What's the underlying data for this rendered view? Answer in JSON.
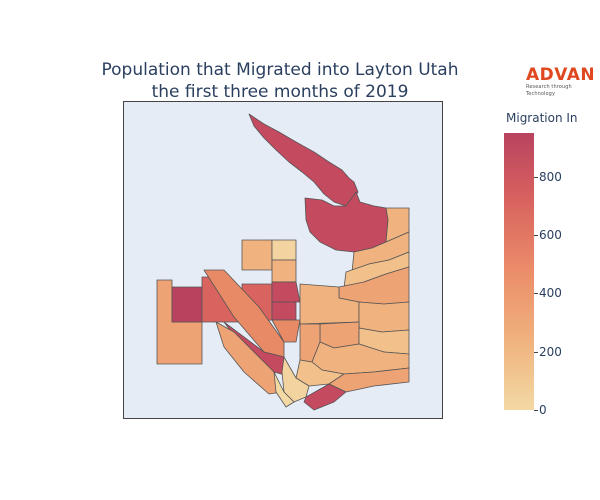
{
  "title": {
    "line1": "Population that Migrated into Layton Utah",
    "line2": "the first three months of 2019"
  },
  "logo": {
    "word": "ADVAN",
    "tagline": "Research through Technology"
  },
  "colorbar": {
    "title": "Migration In",
    "ticks": [
      "0",
      "200",
      "400",
      "600",
      "800"
    ],
    "range": [
      0,
      950
    ],
    "colors": [
      "#f3d9a4",
      "#f0b27e",
      "#eb8d6a",
      "#d9645f",
      "#b9435f"
    ]
  },
  "map": {
    "background": "#e5ecf6",
    "border": "#444444"
  }
}
